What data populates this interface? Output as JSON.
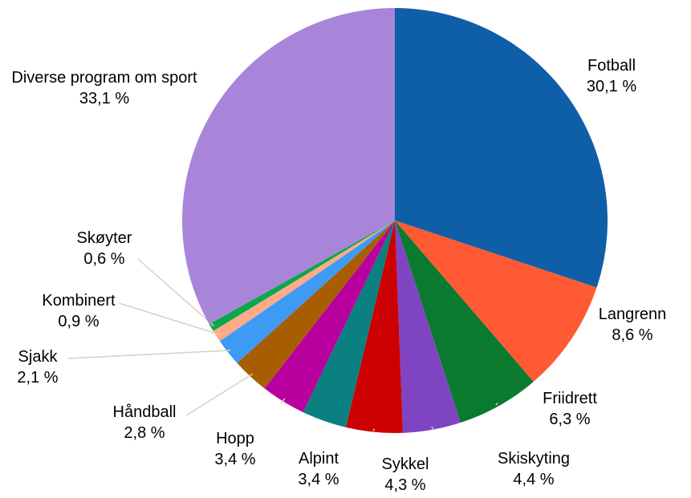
{
  "chart_data": {
    "type": "pie",
    "categories": [
      "Fotball",
      "Langrenn",
      "Friidrett",
      "Skiskyting",
      "Sykkel",
      "Alpint",
      "Hopp",
      "Håndball",
      "Sjakk",
      "Kombinert",
      "Skøyter",
      "Diverse program om sport"
    ],
    "values": [
      30.1,
      8.6,
      6.3,
      4.4,
      4.3,
      3.4,
      3.4,
      2.8,
      2.1,
      0.9,
      0.6,
      33.1
    ],
    "value_labels": [
      "30,1 %",
      "8,6 %",
      "6,3 %",
      "4,4 %",
      "4,3 %",
      "3,4 %",
      "3,4 %",
      "2,8 %",
      "2,1 %",
      "0,9 %",
      "0,6 %",
      "33,1 %"
    ],
    "colors": [
      "#0f5ea8",
      "#ff5a33",
      "#0a7a2f",
      "#7f44c2",
      "#cc0000",
      "#0a8080",
      "#b8009e",
      "#a85e00",
      "#3d9bf5",
      "#ffaa88",
      "#0aa84a",
      "#a985d9"
    ]
  }
}
